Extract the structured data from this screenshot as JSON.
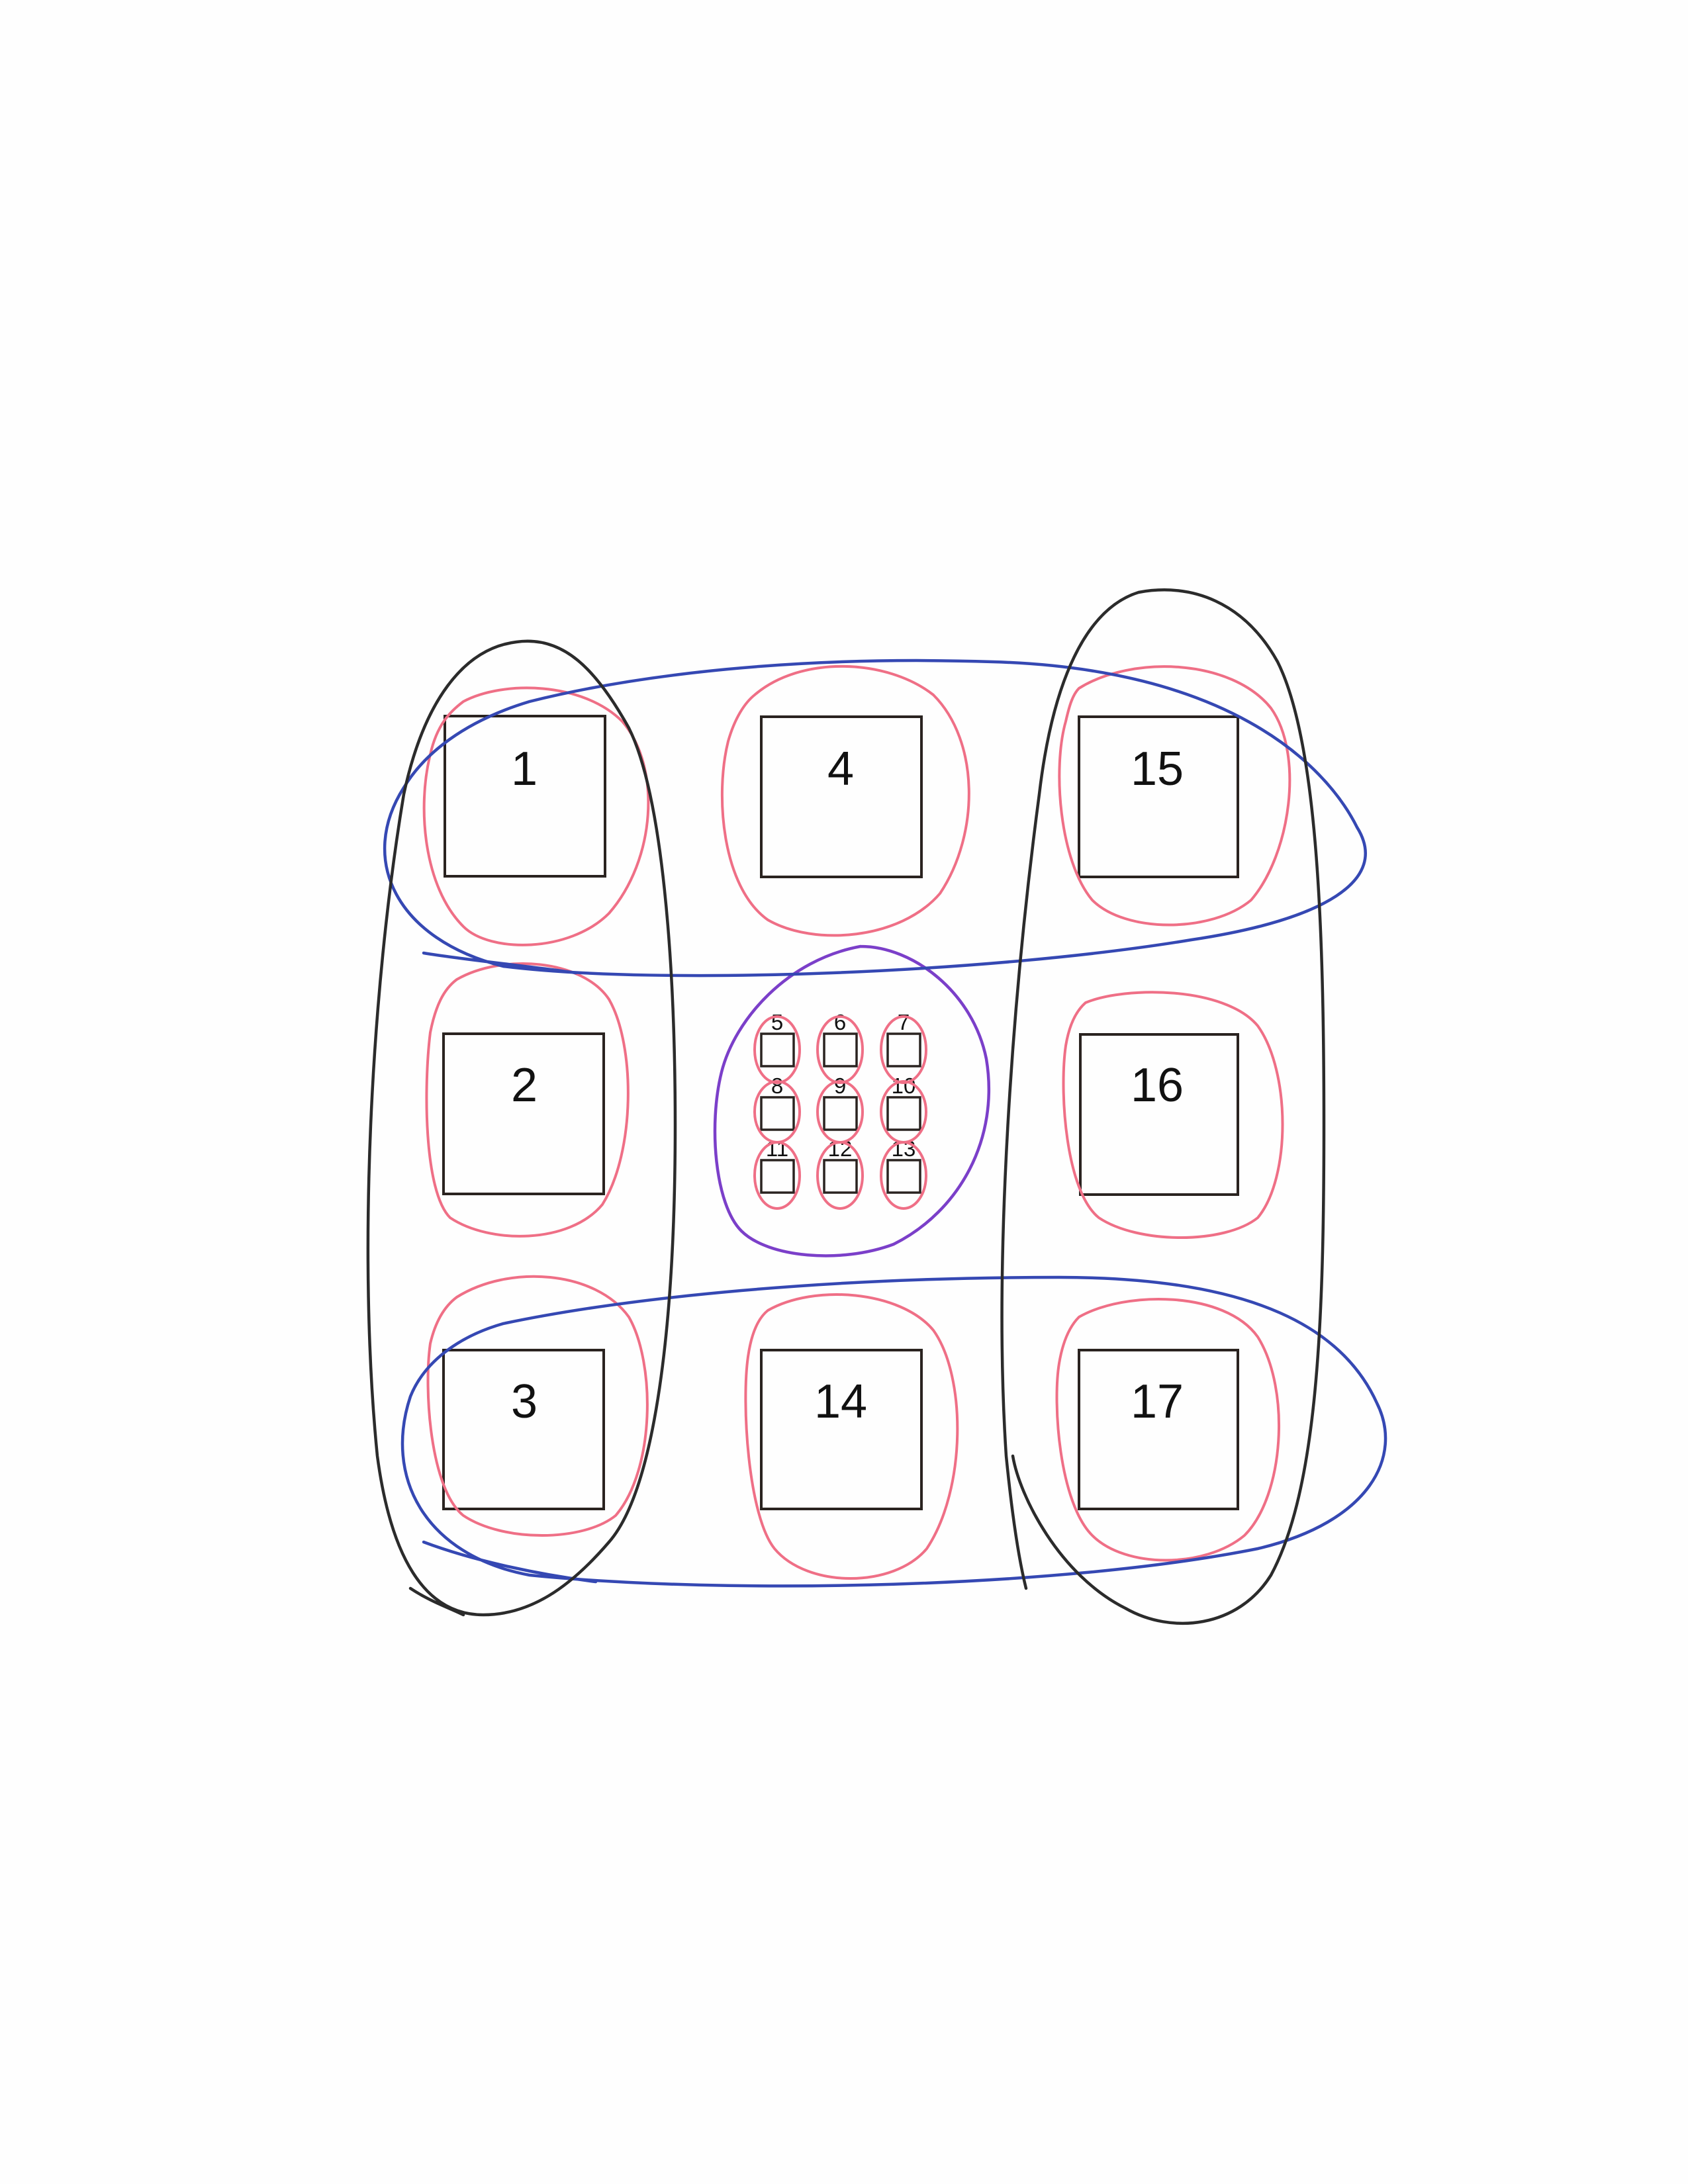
{
  "colors": {
    "box_stroke": "#2a2320",
    "red_loop": "#ef6f86",
    "blue_loop": "#3548b3",
    "black_loop": "#2b2b2b",
    "purple_loop": "#7b3fc9"
  },
  "large_boxes": [
    {
      "label": "1"
    },
    {
      "label": "4"
    },
    {
      "label": "15"
    },
    {
      "label": "2"
    },
    {
      "label": "16"
    },
    {
      "label": "3"
    },
    {
      "label": "14"
    },
    {
      "label": "17"
    }
  ],
  "small_boxes": [
    {
      "label": "5"
    },
    {
      "label": "6"
    },
    {
      "label": "7"
    },
    {
      "label": "8"
    },
    {
      "label": "9"
    },
    {
      "label": "10"
    },
    {
      "label": "11"
    },
    {
      "label": "12"
    },
    {
      "label": "13"
    }
  ]
}
